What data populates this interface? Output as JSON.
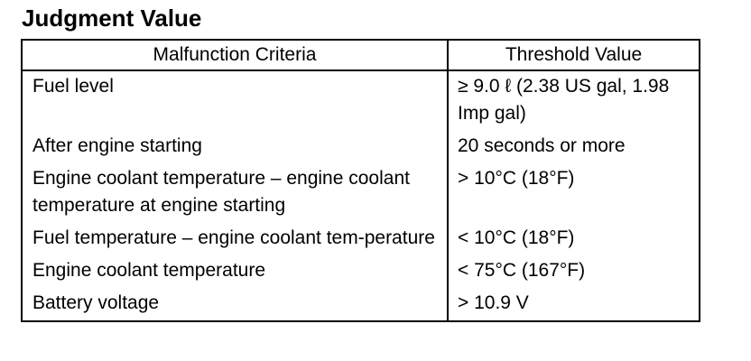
{
  "title": "Judgment Value",
  "table": {
    "headers": [
      "Malfunction Criteria",
      "Threshold Value"
    ],
    "rows": [
      {
        "criteria": "Fuel level",
        "threshold": "≥ 9.0 ℓ (2.38 US gal, 1.98 Imp gal)"
      },
      {
        "criteria": "After engine starting",
        "threshold": "20 seconds or more"
      },
      {
        "criteria": "Engine coolant temperature – engine coolant temperature at engine starting",
        "threshold": "> 10°C (18°F)"
      },
      {
        "criteria": "Fuel temperature – engine coolant tem-perature",
        "threshold": "< 10°C (18°F)"
      },
      {
        "criteria": "Engine coolant temperature",
        "threshold": "< 75°C (167°F)"
      },
      {
        "criteria": "Battery voltage",
        "threshold": "> 10.9 V"
      }
    ]
  }
}
